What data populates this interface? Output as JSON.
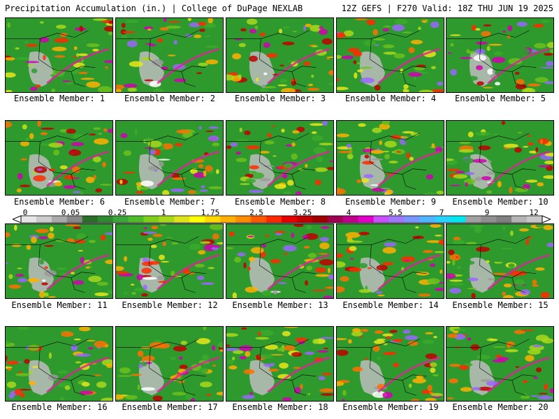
{
  "header": {
    "left": "Precipitation Accumulation (in.) | College of DuPage NEXLAB",
    "right": "12Z GEFS | F270 Valid: 18Z THU JUN 19 2025"
  },
  "members": [
    "Ensemble Member: 1",
    "Ensemble Member: 2",
    "Ensemble Member: 3",
    "Ensemble Member: 4",
    "Ensemble Member: 5",
    "Ensemble Member: 6",
    "Ensemble Member: 7",
    "Ensemble Member: 8",
    "Ensemble Member: 9",
    "Ensemble Member: 10",
    "Ensemble Member: 11",
    "Ensemble Member: 12",
    "Ensemble Member: 13",
    "Ensemble Member: 14",
    "Ensemble Member: 15",
    "Ensemble Member: 16",
    "Ensemble Member: 17",
    "Ensemble Member: 18",
    "Ensemble Member: 19",
    "Ensemble Member: 20"
  ],
  "colorbar": {
    "labels": [
      "0",
      "0.05",
      "0.25",
      "1",
      "1.75",
      "2.5",
      "3.25",
      "4",
      "5.5",
      "7",
      "9",
      "12"
    ],
    "colors": [
      "#e6e6e6",
      "#cccccc",
      "#aaaaaa",
      "#888888",
      "#2a6e2a",
      "#2f8a2f",
      "#38a638",
      "#4dbb2a",
      "#7fcc1a",
      "#a8d81a",
      "#dde51a",
      "#ffff00",
      "#ffd800",
      "#ffb000",
      "#ff8c00",
      "#ff5a00",
      "#ff2800",
      "#e60000",
      "#c00000",
      "#a00000",
      "#a00050",
      "#c0008c",
      "#e000c8",
      "#c850ff",
      "#a078ff",
      "#7896ff",
      "#50b4ff",
      "#28d2ff",
      "#00e6f0",
      "#a0a0a0",
      "#909090",
      "#808080",
      "#b4b4b4",
      "#c8c8c8"
    ]
  }
}
